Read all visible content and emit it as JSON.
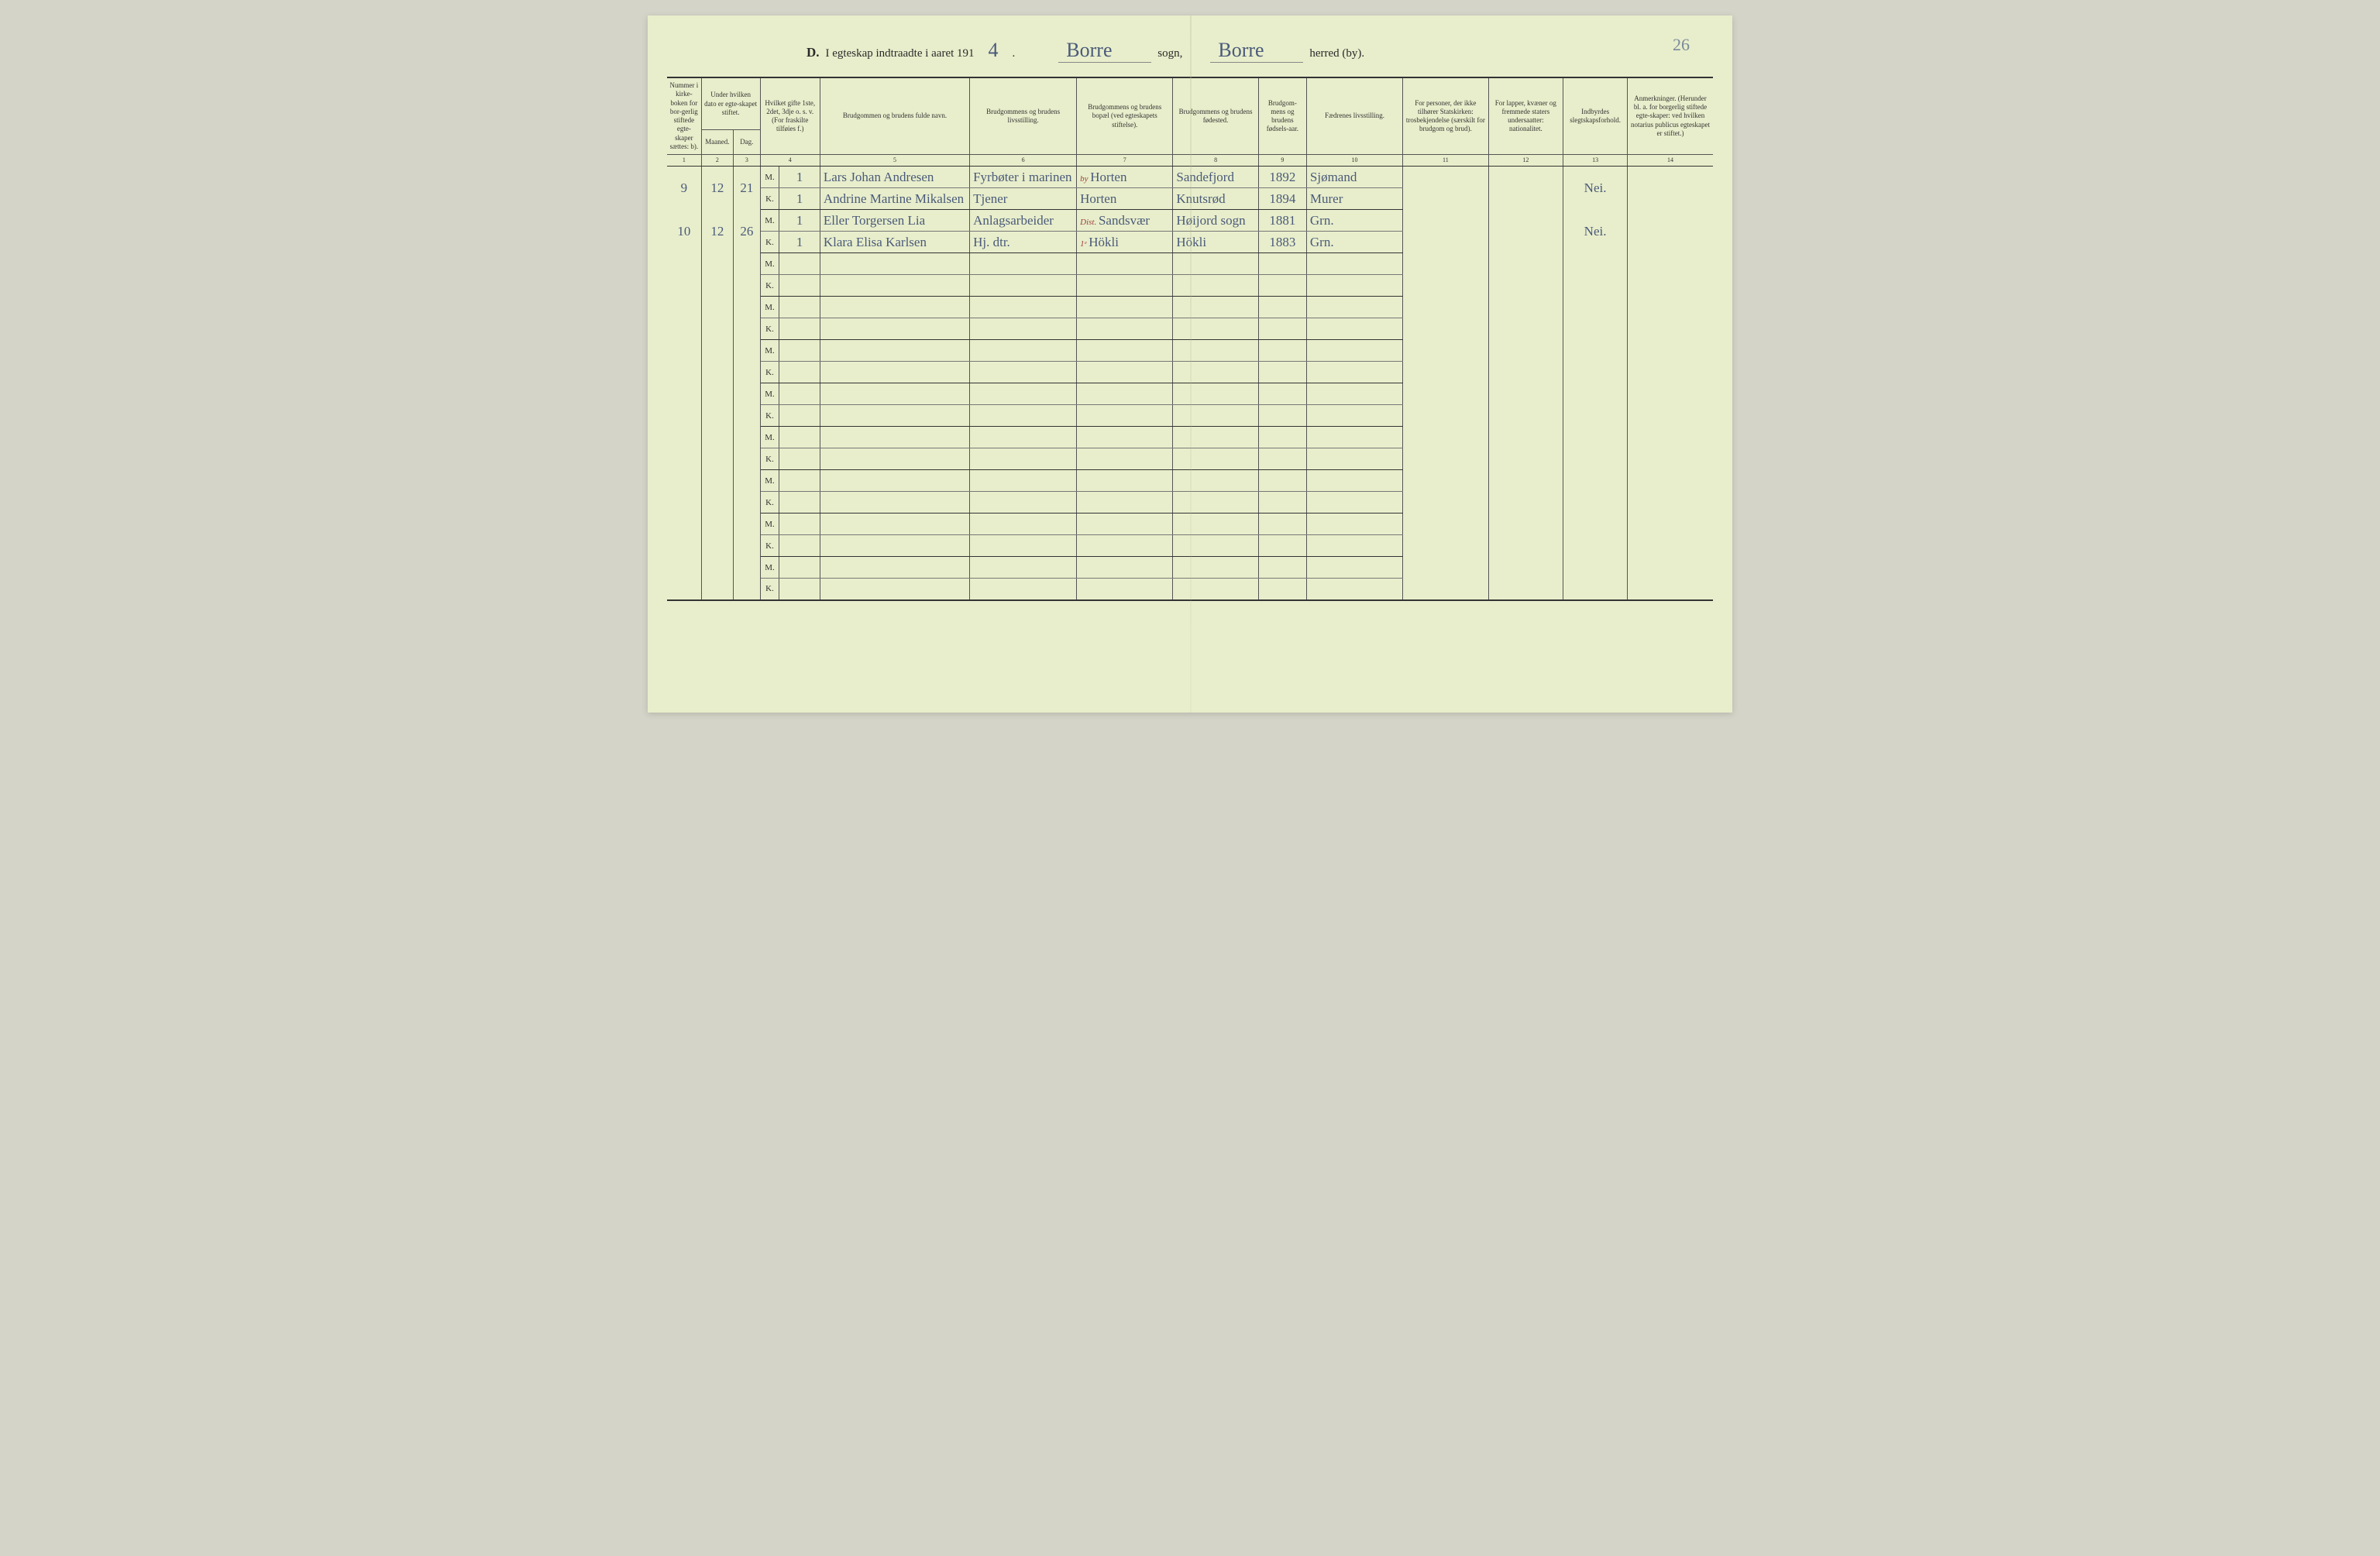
{
  "page_number": "26",
  "title": {
    "section_letter": "D.",
    "prefix": "I egteskap indtraadte i aaret 191",
    "year_digit": "4",
    "sogn_value": "Borre",
    "sogn_label": "sogn,",
    "herred_value": "Borre",
    "herred_label": "herred (by)."
  },
  "headers": {
    "col1": "Nummer i kirke-boken for bor-gerlig stiftede egte-skaper sættes: b).",
    "col2_top": "Under hvilken dato er egte-skapet stiftet.",
    "col2_maaned": "Maaned.",
    "col2_dag": "Dag.",
    "col4": "Hvilket gifte 1ste, 2det, 3dje o. s. v. (For fraskilte tilføies f.)",
    "col5": "Brudgommen og brudens fulde navn.",
    "col6": "Brudgommens og brudens livsstilling.",
    "col7": "Brudgommens og brudens bopæl (ved egteskapets stiftelse).",
    "col8": "Brudgommens og brudens fødested.",
    "col9": "Brudgom-mens og brudens fødsels-aar.",
    "col10": "Fædrenes livsstilling.",
    "col11": "For personer, der ikke tilhører Statskirken: trosbekjendelse (særskilt for brudgom og brud).",
    "col12": "For lapper, kvæner og fremmede staters undersaatter: nationalitet.",
    "col13": "Indbyrdes slegtskapsforhold.",
    "col14": "Anmerkninger. (Herunder bl. a. for borgerlig stiftede egte-skaper: ved hvilken notarius publicus egteskapet er stiftet.)"
  },
  "colnums": [
    "1",
    "2",
    "3",
    "4",
    "5",
    "6",
    "7",
    "8",
    "9",
    "10",
    "11",
    "12",
    "13",
    "14"
  ],
  "mk_labels": {
    "m": "M.",
    "k": "K."
  },
  "rows": [
    {
      "num": "9",
      "maaned": "12",
      "dag": "21",
      "m": {
        "gifte": "1",
        "navn": "Lars Johan Andresen",
        "livsstilling": "Fyrbøter i marinen",
        "bopael_note": "by",
        "bopael": "Horten",
        "fodested": "Sandefjord",
        "fodselsaar": "1892",
        "fadrene": "Sjømand"
      },
      "k": {
        "gifte": "1",
        "navn": "Andrine Martine Mikalsen",
        "livsstilling": "Tjener",
        "bopael": "Horten",
        "fodested": "Knutsrød",
        "fodselsaar": "1894",
        "fadrene": "Murer"
      },
      "slegt": "Nei."
    },
    {
      "num": "10",
      "maaned": "12",
      "dag": "26",
      "m": {
        "gifte": "1",
        "navn": "Eller Torgersen Lia",
        "livsstilling": "Anlagsarbeider",
        "bopael_note": "Dist.",
        "bopael": "Sandsvær",
        "fodested": "Høijord sogn",
        "fodselsaar": "1881",
        "fadrene": "Grn."
      },
      "k": {
        "gifte": "1",
        "navn": "Klara Elisa Karlsen",
        "livsstilling": "Hj. dtr.",
        "bopael_note": "1ᵉ",
        "bopael": "Hökli",
        "fodested": "Hökli",
        "fodselsaar": "1883",
        "fadrene": "Grn."
      },
      "slegt": "Nei."
    }
  ],
  "empty_rows": 8,
  "colors": {
    "paper": "#e8eecb",
    "ink_print": "#333333",
    "ink_handwritten": "#4a5a7a",
    "ink_red": "#a04040",
    "border": "#555555",
    "background": "#d4d4c8"
  },
  "typography": {
    "header_fontsize_pt": 9,
    "body_handwritten_fontsize_pt": 17,
    "title_fontsize_pt": 15
  }
}
